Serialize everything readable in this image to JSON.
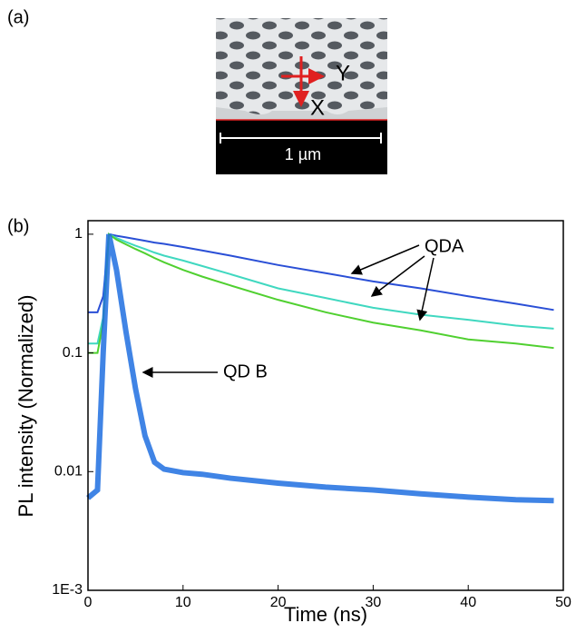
{
  "panel_a": {
    "label": "(a)",
    "axis_y": "Y",
    "axis_x": "X",
    "scale_bar": "1 µm"
  },
  "chart_data": {
    "type": "line",
    "panel_label": "(b)",
    "xlabel": "Time (ns)",
    "ylabel": "PL intensity (Normalized)",
    "log_y": true,
    "xlim": [
      0,
      50
    ],
    "xticks": [
      0,
      10,
      20,
      30,
      40,
      50
    ],
    "ylim": [
      0.001,
      1.3
    ],
    "yticks": [
      1,
      0.1,
      0.01,
      {
        "value": 0.001,
        "label": "1E-3"
      }
    ],
    "x": [
      0,
      1,
      1.6,
      2.2,
      3,
      4,
      5,
      6,
      7,
      8,
      10,
      12,
      15,
      20,
      25,
      30,
      35,
      40,
      45,
      49
    ],
    "series": [
      {
        "color": "#2a4fd6",
        "values": [
          0.22,
          0.22,
          0.3,
          1,
          0.97,
          0.94,
          0.91,
          0.88,
          0.85,
          0.83,
          0.78,
          0.73,
          0.66,
          0.55,
          0.47,
          0.4,
          0.35,
          0.3,
          0.26,
          0.23
        ]
      },
      {
        "color": "#40d8c0",
        "values": [
          0.12,
          0.12,
          0.2,
          1,
          0.93,
          0.86,
          0.8,
          0.75,
          0.7,
          0.66,
          0.6,
          0.54,
          0.46,
          0.35,
          0.29,
          0.24,
          0.21,
          0.19,
          0.17,
          0.16
        ]
      },
      {
        "color": "#50d030",
        "values": [
          0.1,
          0.1,
          0.18,
          1,
          0.9,
          0.82,
          0.75,
          0.69,
          0.63,
          0.58,
          0.5,
          0.44,
          0.37,
          0.28,
          0.22,
          0.18,
          0.155,
          0.13,
          0.12,
          0.11
        ]
      },
      {
        "color": "#1e6fe0",
        "values": [
          0.006,
          0.007,
          0.1,
          1,
          0.5,
          0.15,
          0.05,
          0.02,
          0.012,
          0.0105,
          0.0098,
          0.0095,
          0.0088,
          0.008,
          0.0074,
          0.007,
          0.0065,
          0.0061,
          0.0058,
          0.0057
        ]
      }
    ],
    "annotations": {
      "qda": "QDA",
      "qdb": "QD B"
    }
  }
}
